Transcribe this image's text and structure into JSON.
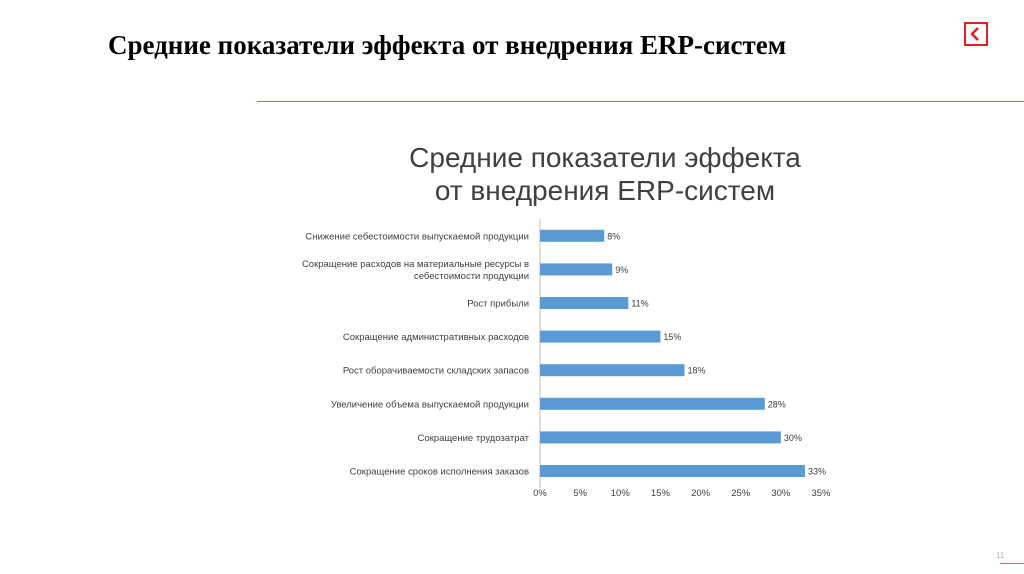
{
  "slide": {
    "title": "Средние показатели эффекта от внедрения ERP-систем",
    "page_number": "11",
    "back_icon": "back-arrow-icon",
    "accent_color": "#e31e24"
  },
  "chart_data": {
    "type": "bar",
    "orientation": "horizontal",
    "title_line1": "Средние показатели эффекта",
    "title_line2": "от внедрения ERP-систем",
    "categories": [
      [
        "Снижение себестоимости выпускаемой продукции"
      ],
      [
        "Сокращение расходов на материальные ресурсы в",
        "себестоимости продукции"
      ],
      [
        "Рост прибыли"
      ],
      [
        "Сокращение административных расходов"
      ],
      [
        "Рост оборачиваемости складских запасов"
      ],
      [
        "Увеличение объема выпускаемой продукции"
      ],
      [
        "Сокращение трудозатрат"
      ],
      [
        "Сокращение сроков исполнения заказов"
      ]
    ],
    "values": [
      8,
      9,
      11,
      15,
      18,
      28,
      30,
      33
    ],
    "data_labels": [
      "8%",
      "9%",
      "11%",
      "15%",
      "18%",
      "28%",
      "30%",
      "33%"
    ],
    "xlim": [
      0,
      35
    ],
    "xticks": [
      0,
      5,
      10,
      15,
      20,
      25,
      30,
      35
    ],
    "xtick_labels": [
      "0%",
      "5%",
      "10%",
      "15%",
      "20%",
      "25%",
      "30%",
      "35%"
    ],
    "bar_color": "#5b9bd5",
    "gridlines": false,
    "legend": "none"
  }
}
